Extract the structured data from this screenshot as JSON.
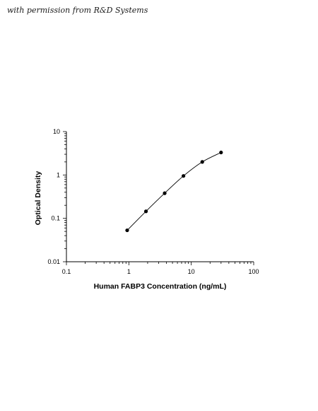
{
  "credit_text": "with permission from R&D Systems",
  "chart_data": {
    "type": "scatter",
    "xlabel": "Human FABP3 Concentration (ng/mL)",
    "ylabel": "Optical Density",
    "xscale": "log",
    "yscale": "log",
    "xlim": [
      0.1,
      100
    ],
    "ylim": [
      0.01,
      10
    ],
    "x_ticks": [
      {
        "value": 0.1,
        "label": "0.1"
      },
      {
        "value": 1,
        "label": "1"
      },
      {
        "value": 10,
        "label": "10"
      },
      {
        "value": 100,
        "label": "100"
      }
    ],
    "y_ticks": [
      {
        "value": 0.01,
        "label": "0.01"
      },
      {
        "value": 0.1,
        "label": "0.1"
      },
      {
        "value": 1,
        "label": "1"
      },
      {
        "value": 10,
        "label": "10"
      }
    ],
    "grid": false,
    "series": [
      {
        "points": [
          {
            "x": 0.94,
            "y": 0.053
          },
          {
            "x": 1.88,
            "y": 0.145
          },
          {
            "x": 3.75,
            "y": 0.38
          },
          {
            "x": 7.5,
            "y": 0.95
          },
          {
            "x": 15,
            "y": 2.0
          },
          {
            "x": 30,
            "y": 3.3
          }
        ],
        "fit_line": true
      }
    ]
  }
}
